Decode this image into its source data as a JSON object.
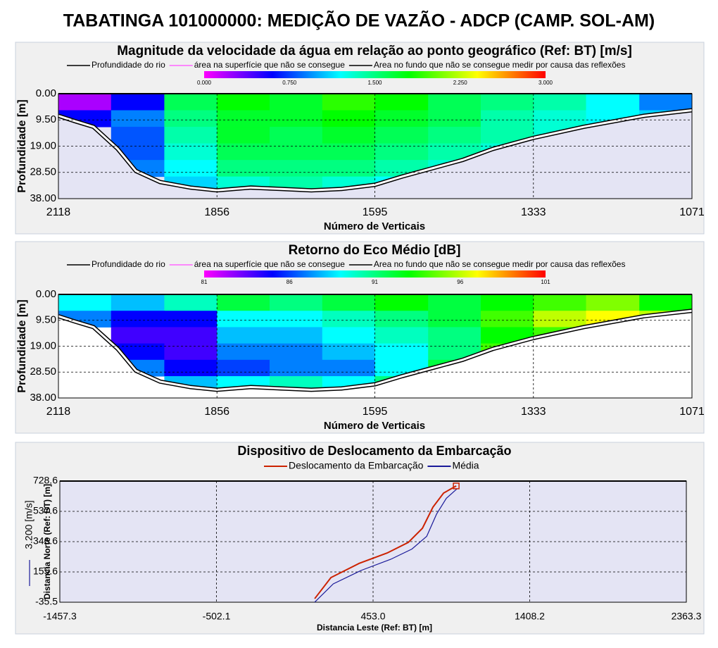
{
  "title": "TABATINGA 101000000: MEDIÇÃO DE VAZÃO - ADCP (CAMP. SOL-AM)",
  "chart_data": [
    {
      "type": "heatmap",
      "title": "Magnitude da velocidade da água em relação ao ponto geográfico (Ref: BT) [m/s]",
      "legend": [
        {
          "name": "Profundidade do rio",
          "color": "#000000"
        },
        {
          "name": "área na superfície que não se consegue",
          "color": "#ff66ff"
        },
        {
          "name": "Area no fundo que não se consegue medir por causa das reflexões",
          "color": "#000000"
        }
      ],
      "colorscale": [
        "#ff00ff",
        "#0000ff",
        "#00ffff",
        "#00ff00",
        "#ffff00",
        "#ff0000"
      ],
      "zlim": [
        0,
        3
      ],
      "colorbar_ticks": [
        {
          "value": 0,
          "label": "0.000"
        },
        {
          "value": 0.75,
          "label": "0.750"
        },
        {
          "value": 1.5,
          "label": "1.500"
        },
        {
          "value": 2.25,
          "label": "2.250"
        },
        {
          "value": 3,
          "label": "3.000"
        }
      ],
      "background": "#e4e4f4",
      "x_label": "Número de Verticais",
      "y_label": "Profundidade [m]",
      "xlim": [
        2118,
        1071
      ],
      "xticks": [
        2118,
        1856,
        1595,
        1333,
        1071
      ],
      "ylim": [
        0,
        38
      ],
      "yticks": [
        {
          "value": 0,
          "label": "0.00"
        },
        {
          "value": 9.5,
          "label": "9.50"
        },
        {
          "value": 19,
          "label": "19.00"
        },
        {
          "value": 28.5,
          "label": "28.50"
        },
        {
          "value": 38,
          "label": "38.00"
        }
      ],
      "x_bins": [
        2118,
        2031,
        1943,
        1856,
        1769,
        1682,
        1595,
        1507,
        1420,
        1333,
        1246,
        1158,
        1071
      ],
      "y_bins": [
        0,
        6,
        12,
        18,
        24,
        30,
        36
      ],
      "z": [
        [
          0.2,
          0.6,
          1.6,
          1.8,
          1.7,
          1.9,
          1.8,
          1.6,
          1.5,
          1.4,
          1.2,
          0.9
        ],
        [
          0.6,
          0.9,
          1.5,
          1.7,
          1.7,
          1.8,
          1.7,
          1.6,
          1.4,
          1.3,
          1.2,
          1.1
        ],
        [
          null,
          0.8,
          1.4,
          1.7,
          1.6,
          1.7,
          1.6,
          1.5,
          1.4,
          1.3,
          null,
          null
        ],
        [
          null,
          0.8,
          1.3,
          1.6,
          1.6,
          1.6,
          1.5,
          1.4,
          1.3,
          null,
          null,
          null
        ],
        [
          null,
          0.9,
          1.2,
          1.5,
          1.5,
          1.5,
          1.4,
          1.3,
          null,
          null,
          null,
          null
        ],
        [
          null,
          null,
          1.1,
          1.3,
          1.4,
          1.3,
          1.2,
          null,
          null,
          null,
          null,
          null
        ]
      ],
      "depth": {
        "x": [
          2118,
          2090,
          2060,
          2020,
          1990,
          1950,
          1900,
          1856,
          1800,
          1750,
          1700,
          1650,
          1595,
          1550,
          1500,
          1450,
          1400,
          1333,
          1250,
          1150,
          1071
        ],
        "values": [
          8,
          10,
          12,
          20,
          28,
          32,
          34,
          35,
          34,
          34.5,
          35,
          34.5,
          33,
          30,
          27,
          24,
          20,
          16,
          12,
          8,
          6
        ]
      }
    },
    {
      "type": "heatmap",
      "title": "Retorno do Eco Médio [dB]",
      "legend": [
        {
          "name": "Profundidade do rio",
          "color": "#000000"
        },
        {
          "name": "área na superfície que não se consegue",
          "color": "#ff66ff"
        },
        {
          "name": "Area no fundo que não se consegue medir por causa das reflexões",
          "color": "#000000"
        }
      ],
      "colorscale": [
        "#ff00ff",
        "#0000ff",
        "#00ffff",
        "#00ff00",
        "#ffff00",
        "#ff0000"
      ],
      "zlim": [
        81,
        101
      ],
      "colorbar_ticks": [
        81,
        86,
        91,
        96,
        101
      ],
      "background": "#ffffff",
      "x_label": "Número de Verticais",
      "y_label": "Profundidade [m]",
      "xlim": [
        2118,
        1071
      ],
      "xticks": [
        2118,
        1856,
        1595,
        1333,
        1071
      ],
      "ylim": [
        0,
        38
      ],
      "yticks": [
        {
          "value": 0,
          "label": "0.00"
        },
        {
          "value": 9.5,
          "label": "9.50"
        },
        {
          "value": 19,
          "label": "19.00"
        },
        {
          "value": 28.5,
          "label": "28.50"
        },
        {
          "value": 38,
          "label": "38.00"
        }
      ],
      "x_bins": [
        2118,
        2031,
        1943,
        1856,
        1769,
        1682,
        1595,
        1507,
        1420,
        1333,
        1246,
        1158,
        1071
      ],
      "y_bins": [
        0,
        6,
        12,
        18,
        24,
        30,
        36
      ],
      "z": [
        [
          89,
          88,
          90,
          92,
          91,
          92,
          93,
          92,
          93,
          94,
          95,
          93
        ],
        [
          87,
          85,
          85,
          89,
          89,
          90,
          91,
          92,
          94,
          96,
          97,
          96
        ],
        [
          null,
          84,
          84,
          88,
          88,
          89,
          90,
          91,
          93,
          94,
          null,
          null
        ],
        [
          null,
          85,
          84,
          87,
          87,
          88,
          89,
          91,
          94,
          null,
          null,
          null
        ],
        [
          null,
          87,
          85,
          86,
          87,
          87,
          89,
          92,
          null,
          null,
          null,
          null
        ],
        [
          null,
          null,
          88,
          89,
          90,
          89,
          91,
          null,
          null,
          null,
          null,
          null
        ]
      ],
      "depth": {
        "x": [
          2118,
          2090,
          2060,
          2020,
          1990,
          1950,
          1900,
          1856,
          1800,
          1750,
          1700,
          1650,
          1595,
          1550,
          1500,
          1450,
          1400,
          1333,
          1250,
          1150,
          1071
        ],
        "values": [
          8,
          10,
          12,
          20,
          28,
          32,
          34,
          35,
          34,
          34.5,
          35,
          34.5,
          33,
          30,
          27,
          24,
          20,
          16,
          12,
          8,
          6
        ]
      }
    },
    {
      "type": "line",
      "title": "Dispositivo de Deslocamento da Embarcação",
      "x_label": "Distancia Leste (Ref: BT) [m]",
      "y_label": "Distancia Norte (Ref: BT) [m]",
      "scale_label": "3.200 [m/s]",
      "scale_color": "#1a1a99",
      "background": "#e4e4f4",
      "xlim": [
        -1457.3,
        2363.3
      ],
      "xticks": [
        -1457.3,
        -502.1,
        {
          "value": 453,
          "label": "453.0"
        },
        1408.2,
        2363.3
      ],
      "ylim": [
        -35.5,
        728.6
      ],
      "yticks": [
        -35.5,
        155.6,
        346.6,
        537.6,
        728.6
      ],
      "series": [
        {
          "name": "Deslocamento da Embarcação",
          "color": "#cc2200",
          "x": [
            97,
            196,
            367,
            539,
            668,
            754,
            818,
            883,
            960
          ],
          "values": [
            -13,
            120,
            209,
            275,
            342,
            431,
            564,
            653,
            698
          ]
        },
        {
          "name": "Média",
          "color": "#1a1a99",
          "x": [
            97,
            210,
            380,
            560,
            690,
            780,
            840,
            900,
            965
          ],
          "values": [
            -35,
            80,
            165,
            235,
            300,
            380,
            520,
            620,
            680
          ]
        }
      ]
    }
  ]
}
